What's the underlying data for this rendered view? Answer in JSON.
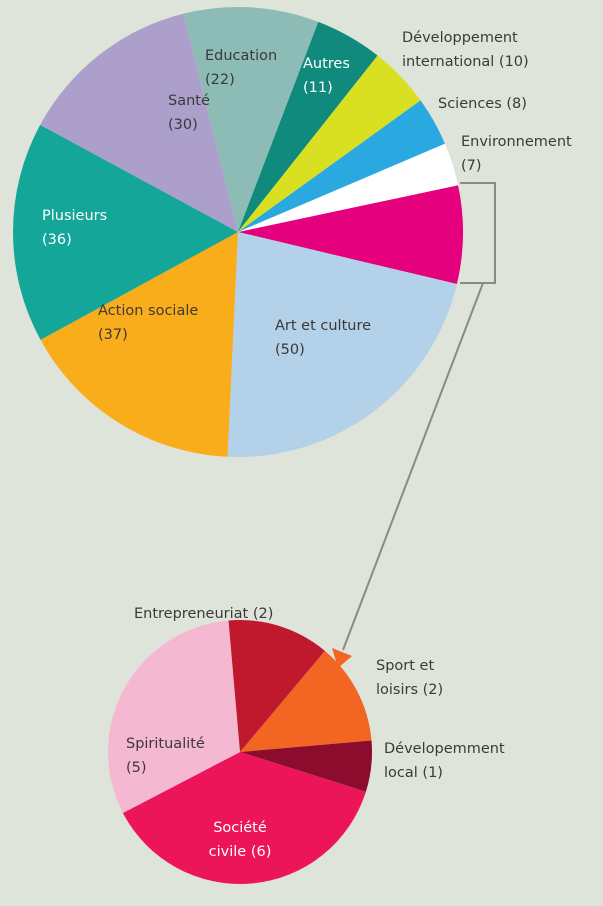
{
  "chart_data": [
    {
      "type": "pie",
      "categories": [
        null,
        "Art et culture",
        "Action sociale",
        "Plusieurs",
        "Santé",
        "Education",
        "Autres",
        "Développement international",
        "Sciences",
        "Environnement"
      ],
      "values": [
        16,
        50,
        37,
        36,
        30,
        22,
        11,
        10,
        8,
        7
      ],
      "value_labels": [
        null,
        "(50)",
        "(37)",
        "(36)",
        "(30)",
        "(22)",
        "(11)",
        "(10)",
        "(8)",
        "(7)"
      ],
      "colors": [
        "#e5007e",
        "#b3d1e8",
        "#f9ad1a",
        "#14a699",
        "#ad9fcb",
        "#8dbcb6",
        "#0f8a7c",
        "#d8e021",
        "#2aa9e0",
        "#ffffff"
      ]
    },
    {
      "type": "pie",
      "categories": [
        "Sport et loisirs",
        "Dévelopemment local",
        "Société civile",
        "Spiritualité",
        "Entrepreneuriat"
      ],
      "values": [
        2,
        1,
        6,
        5,
        2
      ],
      "value_labels": [
        "(2)",
        "(1)",
        "(6)",
        "(5)",
        "(2)"
      ],
      "colors": [
        "#f26522",
        "#8c0c2e",
        "#ec1559",
        "#f4b8d0",
        "#c0192e"
      ]
    }
  ]
}
